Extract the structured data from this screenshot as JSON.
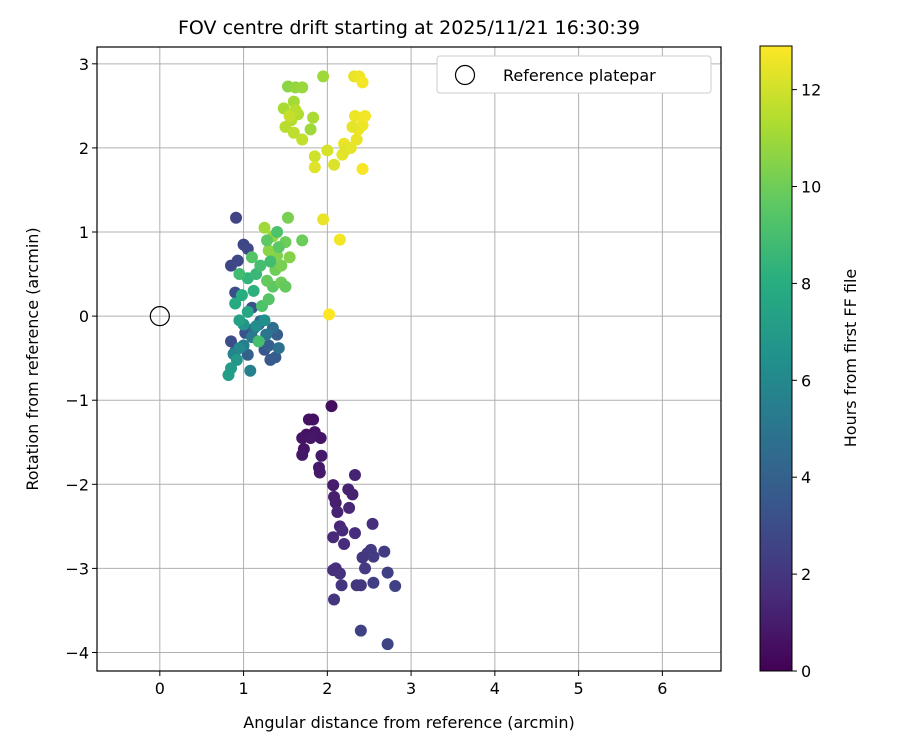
{
  "chart_data": {
    "type": "scatter",
    "title": "FOV centre drift starting at 2025/11/21 16:30:39",
    "xlabel": "Angular distance from reference (arcmin)",
    "ylabel": "Rotation from reference (arcmin)",
    "xlim": [
      -0.75,
      6.7
    ],
    "ylim": [
      -4.22,
      3.2
    ],
    "x_ticks": [
      0,
      1,
      2,
      3,
      4,
      5,
      6
    ],
    "y_ticks": [
      -4,
      -3,
      -2,
      -1,
      0,
      1,
      2,
      3
    ],
    "x_tick_labels": [
      "0",
      "1",
      "2",
      "3",
      "4",
      "5",
      "6"
    ],
    "y_tick_labels": [
      "−4",
      "−3",
      "−2",
      "−1",
      "0",
      "1",
      "2",
      "3"
    ],
    "grid": true,
    "legend": {
      "position": "top-right",
      "entries": [
        {
          "label": "Reference platepar",
          "marker": "open-circle"
        }
      ]
    },
    "reference_point": {
      "x": 0,
      "y": 0
    },
    "colorbar": {
      "label": "Hours from first FF file",
      "colormap": "viridis",
      "range": [
        0,
        12.9
      ],
      "ticks": [
        0,
        2,
        4,
        6,
        8,
        10,
        12
      ],
      "tick_labels": [
        "0",
        "2",
        "4",
        "6",
        "8",
        "10",
        "12"
      ]
    },
    "points": [
      [
        2.05,
        -1.07,
        0.5
      ],
      [
        1.83,
        -1.23,
        0.6
      ],
      [
        1.78,
        -1.23,
        0.6
      ],
      [
        1.85,
        -1.38,
        0.7
      ],
      [
        1.92,
        -1.45,
        0.7
      ],
      [
        1.75,
        -1.41,
        0.6
      ],
      [
        1.7,
        -1.45,
        0.7
      ],
      [
        1.72,
        -1.58,
        0.7
      ],
      [
        1.7,
        -1.65,
        0.8
      ],
      [
        1.8,
        -1.45,
        0.8
      ],
      [
        1.93,
        -1.66,
        0.9
      ],
      [
        1.9,
        -1.8,
        0.9
      ],
      [
        1.91,
        -1.86,
        0.9
      ],
      [
        2.07,
        -2.01,
        1.0
      ],
      [
        2.08,
        -2.15,
        1.1
      ],
      [
        2.1,
        -2.22,
        1.1
      ],
      [
        2.25,
        -2.06,
        1.2
      ],
      [
        2.3,
        -2.12,
        1.2
      ],
      [
        2.33,
        -1.89,
        1.3
      ],
      [
        2.12,
        -2.33,
        1.3
      ],
      [
        2.26,
        -2.28,
        1.4
      ],
      [
        2.15,
        -2.5,
        1.4
      ],
      [
        2.18,
        -2.55,
        1.5
      ],
      [
        2.07,
        -2.63,
        1.5
      ],
      [
        2.2,
        -2.71,
        1.6
      ],
      [
        2.33,
        -2.58,
        1.6
      ],
      [
        2.54,
        -2.47,
        1.7
      ],
      [
        2.07,
        -3.02,
        1.7
      ],
      [
        2.1,
        -3.0,
        1.8
      ],
      [
        2.15,
        -3.06,
        1.8
      ],
      [
        2.17,
        -3.2,
        1.9
      ],
      [
        2.08,
        -3.37,
        1.9
      ],
      [
        2.35,
        -3.2,
        2.0
      ],
      [
        2.4,
        -3.2,
        2.0
      ],
      [
        2.42,
        -2.87,
        2.1
      ],
      [
        2.48,
        -2.82,
        2.1
      ],
      [
        2.52,
        -2.78,
        2.2
      ],
      [
        2.45,
        -3.0,
        2.2
      ],
      [
        2.55,
        -2.86,
        2.3
      ],
      [
        2.68,
        -2.8,
        2.3
      ],
      [
        2.55,
        -3.17,
        2.4
      ],
      [
        2.72,
        -3.05,
        2.4
      ],
      [
        2.81,
        -3.21,
        2.5
      ],
      [
        2.4,
        -3.74,
        2.5
      ],
      [
        2.72,
        -3.9,
        2.6
      ],
      [
        0.91,
        1.17,
        2.6
      ],
      [
        0.85,
        0.6,
        2.7
      ],
      [
        1.0,
        0.85,
        2.7
      ],
      [
        1.05,
        0.8,
        2.8
      ],
      [
        0.93,
        0.66,
        2.8
      ],
      [
        0.9,
        0.28,
        3.0
      ],
      [
        0.85,
        -0.3,
        3.0
      ],
      [
        0.9,
        -0.42,
        3.1
      ],
      [
        1.02,
        -0.2,
        3.2
      ],
      [
        1.1,
        0.1,
        3.3
      ],
      [
        1.18,
        -0.1,
        3.4
      ],
      [
        1.25,
        -0.4,
        3.5
      ],
      [
        1.32,
        -0.52,
        3.6
      ],
      [
        1.38,
        -0.49,
        3.7
      ],
      [
        1.4,
        -0.22,
        3.8
      ],
      [
        1.3,
        -0.35,
        3.9
      ],
      [
        1.05,
        -0.46,
        4.0
      ],
      [
        1.12,
        -0.15,
        4.2
      ],
      [
        1.2,
        -0.06,
        4.4
      ],
      [
        1.35,
        -0.14,
        4.6
      ],
      [
        1.42,
        -0.38,
        4.8
      ],
      [
        1.27,
        -0.22,
        5.0
      ],
      [
        1.1,
        -0.25,
        5.2
      ],
      [
        1.0,
        -0.35,
        5.4
      ],
      [
        1.08,
        -0.65,
        5.6
      ],
      [
        0.88,
        -0.45,
        5.8
      ],
      [
        0.95,
        -0.38,
        6.0
      ],
      [
        1.15,
        -0.12,
        6.2
      ],
      [
        1.25,
        -0.05,
        6.4
      ],
      [
        1.0,
        -0.1,
        6.6
      ],
      [
        0.92,
        -0.52,
        6.8
      ],
      [
        0.85,
        -0.62,
        7.0
      ],
      [
        0.82,
        -0.7,
        7.2
      ],
      [
        0.95,
        -0.05,
        7.4
      ],
      [
        1.05,
        0.05,
        7.6
      ],
      [
        0.9,
        0.15,
        7.8
      ],
      [
        0.98,
        0.25,
        8.0
      ],
      [
        1.12,
        0.3,
        8.2
      ],
      [
        1.05,
        0.45,
        8.4
      ],
      [
        1.15,
        0.5,
        8.6
      ],
      [
        0.95,
        0.5,
        8.8
      ],
      [
        1.18,
        -0.3,
        9.0
      ],
      [
        1.22,
        0.12,
        9.2
      ],
      [
        1.3,
        0.2,
        9.4
      ],
      [
        1.35,
        0.35,
        9.6
      ],
      [
        1.28,
        0.42,
        9.8
      ],
      [
        1.38,
        0.55,
        10.0
      ],
      [
        1.45,
        0.6,
        10.2
      ],
      [
        1.4,
        0.72,
        10.4
      ],
      [
        1.3,
        0.78,
        10.6
      ],
      [
        1.35,
        0.95,
        10.8
      ],
      [
        1.25,
        1.05,
        11.0
      ],
      [
        1.53,
        1.17,
        10.2
      ],
      [
        1.5,
        0.88,
        10.0
      ],
      [
        1.55,
        0.7,
        10.4
      ],
      [
        1.45,
        0.4,
        10.0
      ],
      [
        1.5,
        0.35,
        9.8
      ],
      [
        1.28,
        0.9,
        9.6
      ],
      [
        1.1,
        0.7,
        9.4
      ],
      [
        1.4,
        1.0,
        9.2
      ],
      [
        1.7,
        0.9,
        9.9
      ],
      [
        1.42,
        0.82,
        9.6
      ],
      [
        1.2,
        0.6,
        9.0
      ],
      [
        1.32,
        0.65,
        8.9
      ],
      [
        1.53,
        2.73,
        10.6
      ],
      [
        1.62,
        2.72,
        10.8
      ],
      [
        1.7,
        2.72,
        10.9
      ],
      [
        1.95,
        2.85,
        11.0
      ],
      [
        1.6,
        2.55,
        11.1
      ],
      [
        1.48,
        2.47,
        11.2
      ],
      [
        1.65,
        2.4,
        11.3
      ],
      [
        1.57,
        2.33,
        11.4
      ],
      [
        1.5,
        2.25,
        11.5
      ],
      [
        1.6,
        2.18,
        11.6
      ],
      [
        1.7,
        2.1,
        11.7
      ],
      [
        1.8,
        2.22,
        11.0
      ],
      [
        1.83,
        2.36,
        11.2
      ],
      [
        1.62,
        2.45,
        11.5
      ],
      [
        1.55,
        2.38,
        11.8
      ],
      [
        1.85,
        1.9,
        12.0
      ],
      [
        2.0,
        1.97,
        12.1
      ],
      [
        2.08,
        1.8,
        12.2
      ],
      [
        1.85,
        1.77,
        12.3
      ],
      [
        2.18,
        1.92,
        12.4
      ],
      [
        2.2,
        2.05,
        12.5
      ],
      [
        2.22,
        1.98,
        12.3
      ],
      [
        2.28,
        2.0,
        12.4
      ],
      [
        2.35,
        2.1,
        12.5
      ],
      [
        2.37,
        2.22,
        12.6
      ],
      [
        2.42,
        2.27,
        12.6
      ],
      [
        2.45,
        2.38,
        12.7
      ],
      [
        2.33,
        2.38,
        12.6
      ],
      [
        2.3,
        2.25,
        12.4
      ],
      [
        2.32,
        2.85,
        12.5
      ],
      [
        2.38,
        2.85,
        12.6
      ],
      [
        2.42,
        2.78,
        12.7
      ],
      [
        2.42,
        1.75,
        12.8
      ],
      [
        2.15,
        0.91,
        12.7
      ],
      [
        1.95,
        1.15,
        12.5
      ],
      [
        2.02,
        0.02,
        12.9
      ]
    ]
  }
}
